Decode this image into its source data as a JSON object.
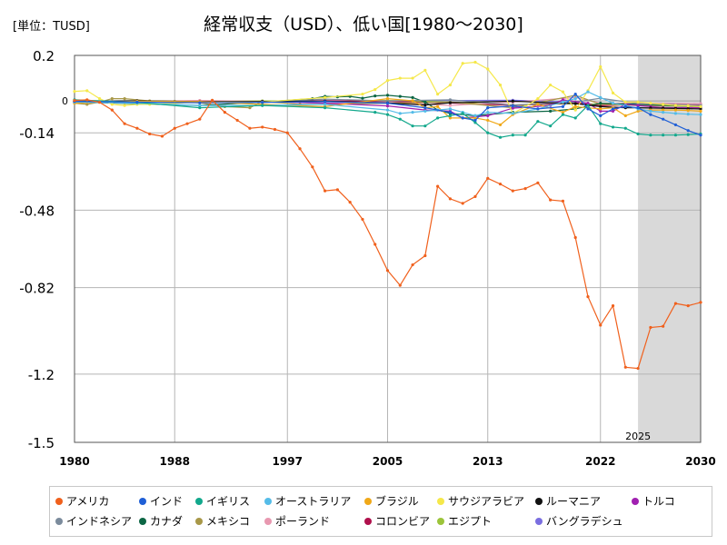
{
  "unit_label": "[単位：TUSD]",
  "chart_data": {
    "type": "line",
    "title": "経常収支（USD）、低い国[1980～2030]",
    "xlim": [
      1980,
      2030
    ],
    "ylim": [
      -1.5,
      0.2
    ],
    "y_ticks": [
      "0.2",
      "-0.14",
      "-0.48",
      "-0.82",
      "-1.2",
      "-1.5"
    ],
    "y_tick_values": [
      0.2,
      -0.14,
      -0.48,
      -0.82,
      -1.2,
      -1.5
    ],
    "zero_label": "0",
    "x_ticks": [
      "1980",
      "1988",
      "1997",
      "2005",
      "2013",
      "2022",
      "2030"
    ],
    "x_tick_values": [
      1980,
      1988,
      1997,
      2005,
      2013,
      2022,
      2030
    ],
    "forecast_start": 2025,
    "forecast_label": "2025",
    "grid": true,
    "legend_position": "bottom",
    "series": [
      {
        "name": "アメリカ",
        "color": "#f0601c",
        "x": [
          1980,
          1981,
          1982,
          1983,
          1984,
          1985,
          1986,
          1987,
          1988,
          1989,
          1990,
          1991,
          1992,
          1993,
          1994,
          1995,
          1996,
          1997,
          1998,
          1999,
          2000,
          2001,
          2002,
          2003,
          2004,
          2005,
          2006,
          2007,
          2008,
          2009,
          2010,
          2011,
          2012,
          2013,
          2014,
          2015,
          2016,
          2017,
          2018,
          2019,
          2020,
          2021,
          2022,
          2023,
          2024,
          2025,
          2026,
          2027,
          2028,
          2029,
          2030
        ],
        "values": [
          0.002,
          0.005,
          -0.006,
          -0.04,
          -0.1,
          -0.12,
          -0.145,
          -0.155,
          -0.12,
          -0.1,
          -0.08,
          0.003,
          -0.05,
          -0.085,
          -0.12,
          -0.115,
          -0.125,
          -0.14,
          -0.21,
          -0.29,
          -0.395,
          -0.39,
          -0.445,
          -0.52,
          -0.63,
          -0.745,
          -0.81,
          -0.72,
          -0.68,
          -0.375,
          -0.43,
          -0.45,
          -0.42,
          -0.34,
          -0.365,
          -0.395,
          -0.385,
          -0.36,
          -0.435,
          -0.44,
          -0.6,
          -0.86,
          -0.985,
          -0.9,
          -1.17,
          -1.175,
          -0.995,
          -0.99,
          -0.89,
          -0.9,
          -0.885
        ]
      },
      {
        "name": "インド",
        "color": "#1f5fd6",
        "x": [
          1980,
          1985,
          1990,
          1995,
          2000,
          2005,
          2008,
          2010,
          2011,
          2012,
          2013,
          2015,
          2017,
          2019,
          2020,
          2021,
          2022,
          2023,
          2024,
          2025,
          2026,
          2027,
          2028,
          2029,
          2030
        ],
        "values": [
          -0.002,
          -0.005,
          -0.008,
          -0.006,
          -0.003,
          -0.01,
          -0.03,
          -0.05,
          -0.075,
          -0.085,
          -0.03,
          -0.022,
          -0.035,
          -0.025,
          0.03,
          -0.035,
          -0.065,
          -0.035,
          -0.025,
          -0.03,
          -0.06,
          -0.08,
          -0.105,
          -0.13,
          -0.15
        ]
      },
      {
        "name": "イギリス",
        "color": "#12a88c",
        "x": [
          1980,
          1985,
          1990,
          1995,
          2000,
          2004,
          2005,
          2006,
          2007,
          2008,
          2009,
          2010,
          2011,
          2012,
          2013,
          2014,
          2015,
          2016,
          2017,
          2018,
          2019,
          2020,
          2021,
          2022,
          2023,
          2024,
          2025,
          2026,
          2027,
          2028,
          2029,
          2030
        ],
        "values": [
          0.005,
          -0.006,
          -0.03,
          -0.02,
          -0.03,
          -0.05,
          -0.06,
          -0.08,
          -0.11,
          -0.11,
          -0.075,
          -0.065,
          -0.055,
          -0.095,
          -0.14,
          -0.16,
          -0.15,
          -0.15,
          -0.09,
          -0.11,
          -0.06,
          -0.075,
          -0.02,
          -0.1,
          -0.115,
          -0.12,
          -0.145,
          -0.15,
          -0.15,
          -0.15,
          -0.148,
          -0.145
        ]
      },
      {
        "name": "オーストラリア",
        "color": "#55bce8",
        "x": [
          1980,
          1985,
          1990,
          1995,
          2000,
          2005,
          2006,
          2007,
          2008,
          2009,
          2010,
          2011,
          2012,
          2013,
          2015,
          2017,
          2019,
          2020,
          2021,
          2022,
          2023,
          2024,
          2025,
          2026,
          2027,
          2028,
          2029,
          2030
        ],
        "values": [
          -0.005,
          -0.01,
          -0.02,
          -0.02,
          -0.015,
          -0.04,
          -0.055,
          -0.05,
          -0.045,
          -0.04,
          -0.035,
          -0.05,
          -0.065,
          -0.05,
          -0.055,
          -0.035,
          -0.005,
          0.01,
          0.04,
          0.015,
          -0.01,
          -0.02,
          -0.035,
          -0.045,
          -0.05,
          -0.055,
          -0.058,
          -0.06
        ]
      },
      {
        "name": "ブラジル",
        "color": "#f0a818",
        "x": [
          1980,
          1985,
          1990,
          1995,
          2000,
          2005,
          2007,
          2008,
          2009,
          2010,
          2011,
          2012,
          2013,
          2014,
          2015,
          2017,
          2019,
          2020,
          2022,
          2023,
          2024,
          2025,
          2026,
          2027,
          2028,
          2029,
          2030
        ],
        "values": [
          -0.01,
          -0.001,
          -0.003,
          -0.015,
          -0.025,
          0.01,
          0.001,
          -0.03,
          -0.025,
          -0.075,
          -0.075,
          -0.075,
          -0.085,
          -0.105,
          -0.06,
          -0.015,
          -0.05,
          -0.025,
          -0.035,
          -0.03,
          -0.065,
          -0.045,
          -0.04,
          -0.04,
          -0.04,
          -0.042,
          -0.045
        ]
      },
      {
        "name": "サウジアラビア",
        "color": "#f5e84a",
        "x": [
          1980,
          1981,
          1982,
          1983,
          1984,
          1985,
          1986,
          1988,
          1990,
          1995,
          2000,
          2003,
          2004,
          2005,
          2006,
          2007,
          2008,
          2009,
          2010,
          2011,
          2012,
          2013,
          2014,
          2015,
          2016,
          2017,
          2018,
          2019,
          2020,
          2021,
          2022,
          2023,
          2024,
          2025,
          2026,
          2027,
          2028,
          2029,
          2030
        ],
        "values": [
          0.042,
          0.045,
          0.01,
          -0.015,
          -0.02,
          -0.015,
          -0.015,
          -0.01,
          -0.005,
          -0.005,
          0.015,
          0.03,
          0.05,
          0.09,
          0.1,
          0.1,
          0.135,
          0.03,
          0.07,
          0.165,
          0.17,
          0.14,
          0.07,
          -0.055,
          -0.025,
          0.01,
          0.07,
          0.04,
          -0.04,
          0.045,
          0.15,
          0.035,
          -0.005,
          -0.005,
          -0.01,
          -0.015,
          -0.02,
          -0.022,
          -0.025
        ]
      },
      {
        "name": "ルーマニア",
        "color": "#111111",
        "x": [
          1980,
          1985,
          1990,
          1995,
          2000,
          2005,
          2008,
          2010,
          2015,
          2020,
          2022,
          2024,
          2025,
          2026,
          2027,
          2028,
          2029,
          2030
        ],
        "values": [
          -0.003,
          0.001,
          -0.003,
          -0.002,
          -0.001,
          -0.009,
          -0.018,
          -0.008,
          -0.001,
          -0.012,
          -0.025,
          -0.03,
          -0.03,
          -0.031,
          -0.032,
          -0.033,
          -0.034,
          -0.035
        ]
      },
      {
        "name": "トルコ",
        "color": "#a020b0",
        "x": [
          1980,
          1985,
          1990,
          1995,
          2000,
          2005,
          2008,
          2010,
          2011,
          2013,
          2015,
          2018,
          2019,
          2021,
          2022,
          2023,
          2024,
          2025,
          2026,
          2027,
          2028,
          2029,
          2030
        ],
        "values": [
          -0.003,
          -0.002,
          -0.003,
          -0.002,
          -0.01,
          -0.022,
          -0.04,
          -0.045,
          -0.075,
          -0.065,
          -0.032,
          -0.02,
          0.005,
          -0.01,
          -0.045,
          -0.045,
          -0.015,
          -0.02,
          -0.025,
          -0.03,
          -0.03,
          -0.03,
          -0.03
        ]
      },
      {
        "name": "インドネシア",
        "color": "#7b8b9c",
        "x": [
          1980,
          1985,
          1990,
          1995,
          2000,
          2005,
          2010,
          2015,
          2020,
          2022,
          2025,
          2030
        ],
        "values": [
          0.002,
          -0.002,
          -0.003,
          -0.007,
          0.008,
          0,
          0.005,
          -0.018,
          -0.005,
          0.012,
          -0.012,
          -0.02
        ]
      },
      {
        "name": "カナダ",
        "color": "#0c6644",
        "x": [
          1980,
          1985,
          1990,
          1995,
          1999,
          2000,
          2001,
          2002,
          2003,
          2004,
          2005,
          2006,
          2007,
          2008,
          2009,
          2010,
          2012,
          2015,
          2018,
          2020,
          2022,
          2025,
          2030
        ],
        "values": [
          -0.005,
          -0.012,
          -0.02,
          -0.005,
          0.01,
          0.02,
          0.018,
          0.02,
          0.012,
          0.022,
          0.025,
          0.02,
          0.015,
          -0.005,
          -0.04,
          -0.055,
          -0.065,
          -0.05,
          -0.045,
          -0.035,
          -0.01,
          -0.015,
          -0.025
        ]
      },
      {
        "name": "メキシコ",
        "color": "#a89848",
        "x": [
          1980,
          1981,
          1982,
          1983,
          1984,
          1986,
          1988,
          1990,
          1992,
          1994,
          1995,
          1998,
          2000,
          2005,
          2010,
          2015,
          2020,
          2022,
          2025,
          2030
        ],
        "values": [
          -0.01,
          -0.015,
          -0.005,
          0.01,
          0.01,
          0,
          -0.002,
          -0.008,
          -0.025,
          -0.03,
          -0.002,
          -0.015,
          -0.015,
          -0.01,
          -0.005,
          -0.03,
          0.025,
          -0.015,
          -0.02,
          -0.025
        ]
      },
      {
        "name": "ポーランド",
        "color": "#e898b0",
        "x": [
          1980,
          1985,
          1990,
          1995,
          2000,
          2005,
          2010,
          2015,
          2020,
          2022,
          2025,
          2030
        ],
        "values": [
          -0.003,
          -0.002,
          0.002,
          -0.002,
          -0.01,
          -0.005,
          -0.02,
          -0.005,
          0.015,
          -0.01,
          -0.01,
          -0.012
        ]
      },
      {
        "name": "コロンビア",
        "color": "#b0104c",
        "x": [
          1980,
          1985,
          1990,
          1995,
          2000,
          2005,
          2010,
          2015,
          2020,
          2022,
          2025,
          2030
        ],
        "values": [
          -0.001,
          -0.002,
          0.001,
          -0.005,
          0.001,
          -0.002,
          -0.009,
          -0.019,
          -0.009,
          -0.021,
          -0.015,
          -0.018
        ]
      },
      {
        "name": "エジプト",
        "color": "#9cc43a",
        "x": [
          1980,
          1985,
          1990,
          1995,
          2000,
          2005,
          2010,
          2015,
          2020,
          2022,
          2025,
          2030
        ],
        "values": [
          -0.002,
          -0.003,
          0,
          0,
          -0.001,
          0.002,
          -0.005,
          -0.018,
          -0.012,
          -0.015,
          -0.015,
          -0.018
        ]
      },
      {
        "name": "バングラデシュ",
        "color": "#7a6ee0",
        "x": [
          1980,
          1985,
          1990,
          1995,
          2000,
          2005,
          2010,
          2015,
          2020,
          2022,
          2025,
          2030
        ],
        "values": [
          -0.001,
          -0.001,
          -0.001,
          -0.001,
          0,
          0,
          0.002,
          0.003,
          -0.005,
          -0.018,
          -0.01,
          -0.012
        ]
      }
    ]
  }
}
